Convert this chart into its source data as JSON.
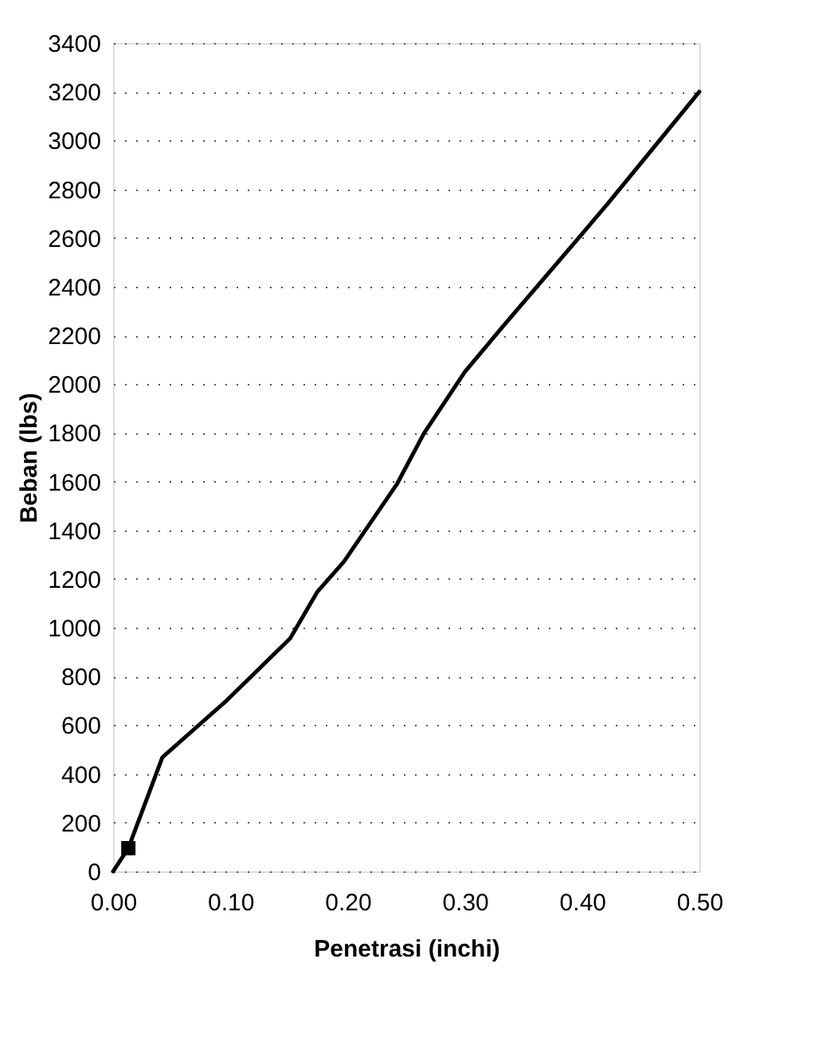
{
  "chart_data": {
    "type": "line",
    "xlabel": "Penetrasi (inchi)",
    "ylabel": "Beban (lbs)",
    "xlim": [
      0,
      0.5
    ],
    "xticks": [
      {
        "value": 0,
        "label": "0.00"
      },
      {
        "value": 0.1,
        "label": "0.10"
      },
      {
        "value": 0.2,
        "label": "0.20"
      },
      {
        "value": 0.3,
        "label": "0.30"
      },
      {
        "value": 0.4,
        "label": "0.40"
      },
      {
        "value": 0.5,
        "label": "0.50"
      }
    ],
    "ylim": [
      0,
      3400
    ],
    "yticks": [
      0,
      200,
      400,
      600,
      800,
      1000,
      1200,
      1400,
      1600,
      1800,
      2000,
      2200,
      2400,
      2600,
      2800,
      3000,
      3200,
      3400
    ],
    "grid": "y",
    "series": [
      {
        "color": "#000000",
        "marker": "none",
        "line_style": "solid",
        "x": [
          0,
          0.013,
          0.042,
          0.097,
          0.151,
          0.174,
          0.197,
          0.242,
          0.265,
          0.3,
          0.333,
          0.4,
          0.423,
          0.45,
          0.5
        ],
        "values": [
          0,
          95,
          468,
          702,
          956,
          1146,
          1272,
          1589,
          1797,
          2050,
          2240,
          2617,
          2747,
          2906,
          3200
        ]
      },
      {
        "type": "scatter",
        "color": "#000000",
        "marker": "square",
        "x": [
          0.013
        ],
        "values": [
          95
        ]
      }
    ]
  }
}
